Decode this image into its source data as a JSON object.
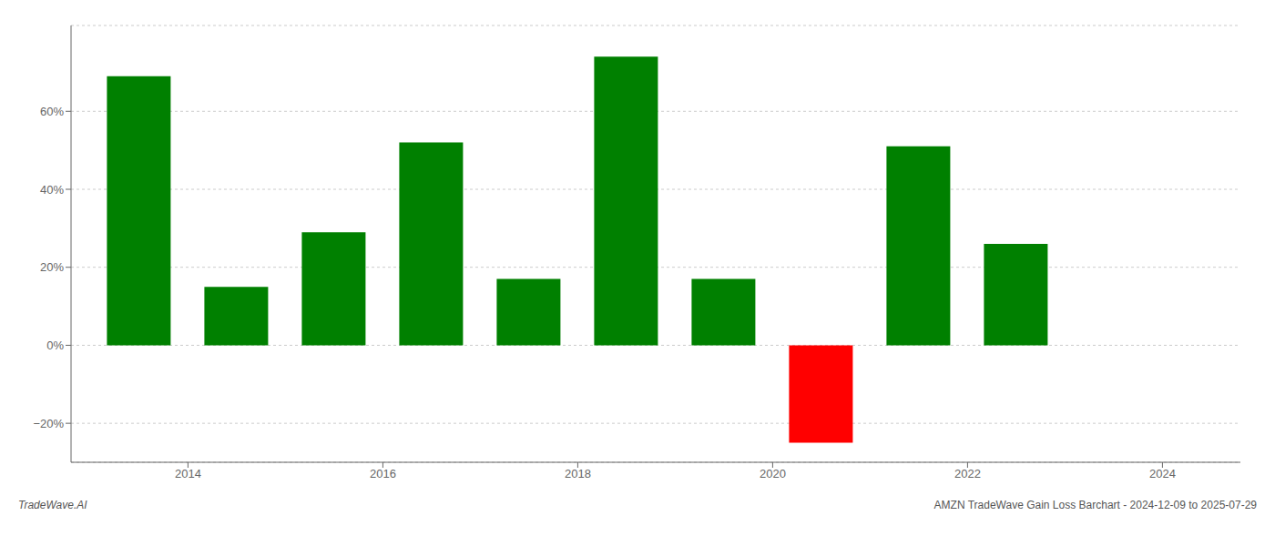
{
  "chart_data": {
    "type": "bar",
    "x": [
      2013.5,
      2014.5,
      2015.5,
      2016.5,
      2017.5,
      2018.5,
      2019.5,
      2020.5,
      2021.5,
      2022.5
    ],
    "values": [
      0.69,
      0.15,
      0.29,
      0.52,
      0.17,
      0.74,
      0.17,
      -0.25,
      0.51,
      0.26
    ],
    "colors": [
      "#008000",
      "#008000",
      "#008000",
      "#008000",
      "#008000",
      "#008000",
      "#008000",
      "#ff0000",
      "#008000",
      "#008000"
    ],
    "xlim": [
      2012.8,
      2024.8
    ],
    "xticks": [
      2014,
      2016,
      2018,
      2020,
      2022,
      2024
    ],
    "ylim": [
      -0.3,
      0.82
    ],
    "yticks": [
      {
        "value": -0.2,
        "label": "−20%"
      },
      {
        "value": 0,
        "label": "0%"
      },
      {
        "value": 0.2,
        "label": "20%"
      },
      {
        "value": 0.4,
        "label": "40%"
      },
      {
        "value": 0.6,
        "label": "60%"
      }
    ],
    "grid": true,
    "annotations": [
      "TradeWave.AI",
      "AMZN TradeWave Gain Loss Barchart - 2024-12-09 to 2025-07-29"
    ]
  }
}
